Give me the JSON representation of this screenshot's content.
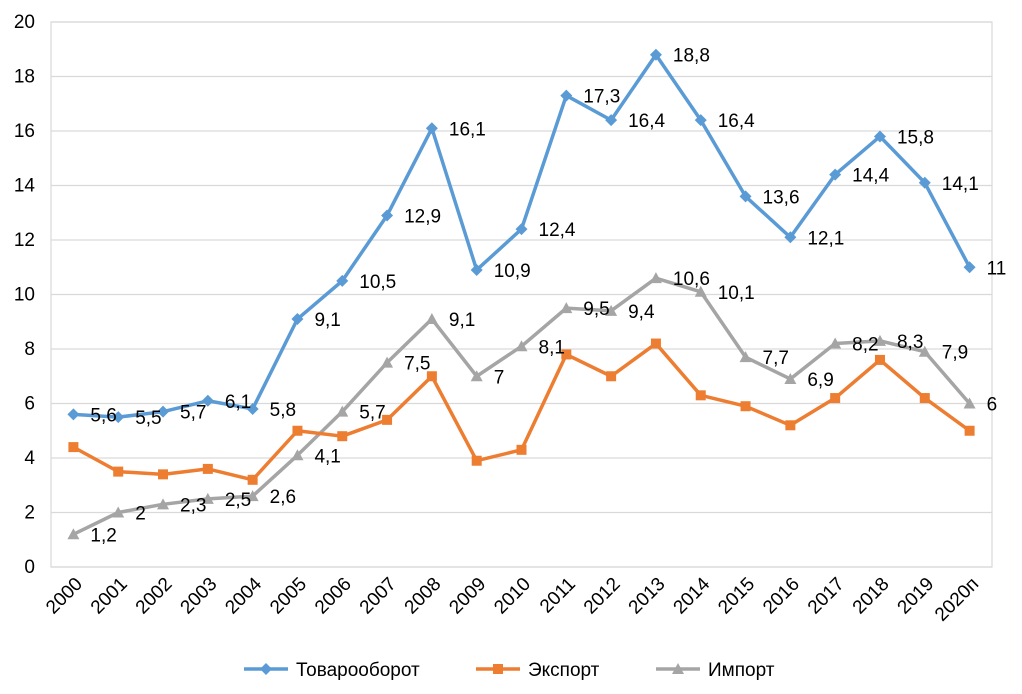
{
  "chart_data": {
    "type": "line",
    "categories": [
      "2000",
      "2001",
      "2002",
      "2003",
      "2004",
      "2005",
      "2006",
      "2007",
      "2008",
      "2009",
      "2010",
      "2011",
      "2012",
      "2013",
      "2014",
      "2015",
      "2016",
      "2017",
      "2018",
      "2019",
      "2020п"
    ],
    "ylim": [
      0,
      20
    ],
    "yticks": [
      0,
      2,
      4,
      6,
      8,
      10,
      12,
      14,
      16,
      18,
      20
    ],
    "grid": true,
    "legend_position": "bottom",
    "series": [
      {
        "name": "Товарооборот",
        "color": "#5B9BD5",
        "marker": "diamond",
        "values": [
          5.6,
          5.5,
          5.7,
          6.1,
          5.8,
          9.1,
          10.5,
          12.9,
          16.1,
          10.9,
          12.4,
          17.3,
          16.4,
          18.8,
          16.4,
          13.6,
          12.1,
          14.4,
          15.8,
          14.1,
          11
        ],
        "labels": [
          "5,6",
          "5,5",
          "5,7",
          "6,1",
          "5,8",
          "9,1",
          "10,5",
          "12,9",
          "16,1",
          "10,9",
          "12,4",
          "17,3",
          "16,4",
          "18,8",
          "16,4",
          "13,6",
          "12,1",
          "14,4",
          "15,8",
          "14,1",
          "11"
        ]
      },
      {
        "name": "Экспорт",
        "color": "#ED7D31",
        "marker": "square",
        "values": [
          4.4,
          3.5,
          3.4,
          3.6,
          3.2,
          5.0,
          4.8,
          5.4,
          7.0,
          3.9,
          4.3,
          7.8,
          7.0,
          8.2,
          6.3,
          5.9,
          5.2,
          6.2,
          7.6,
          6.2,
          5.0
        ]
      },
      {
        "name": "Импорт",
        "color": "#A5A5A5",
        "marker": "triangle",
        "values": [
          1.2,
          2.0,
          2.3,
          2.5,
          2.6,
          4.1,
          5.7,
          7.5,
          9.1,
          7.0,
          8.1,
          9.5,
          9.4,
          10.6,
          10.1,
          7.7,
          6.9,
          8.2,
          8.3,
          7.9,
          6
        ],
        "labels": [
          "1,2",
          "2",
          "2,3",
          "2,5",
          "2,6",
          "4,1",
          "5,7",
          "7,5",
          "9,1",
          "7",
          "8,1",
          "9,5",
          "9,4",
          "10,6",
          "10,1",
          "7,7",
          "6,9",
          "8,2",
          "8,3",
          "7,9",
          "6"
        ]
      }
    ]
  }
}
